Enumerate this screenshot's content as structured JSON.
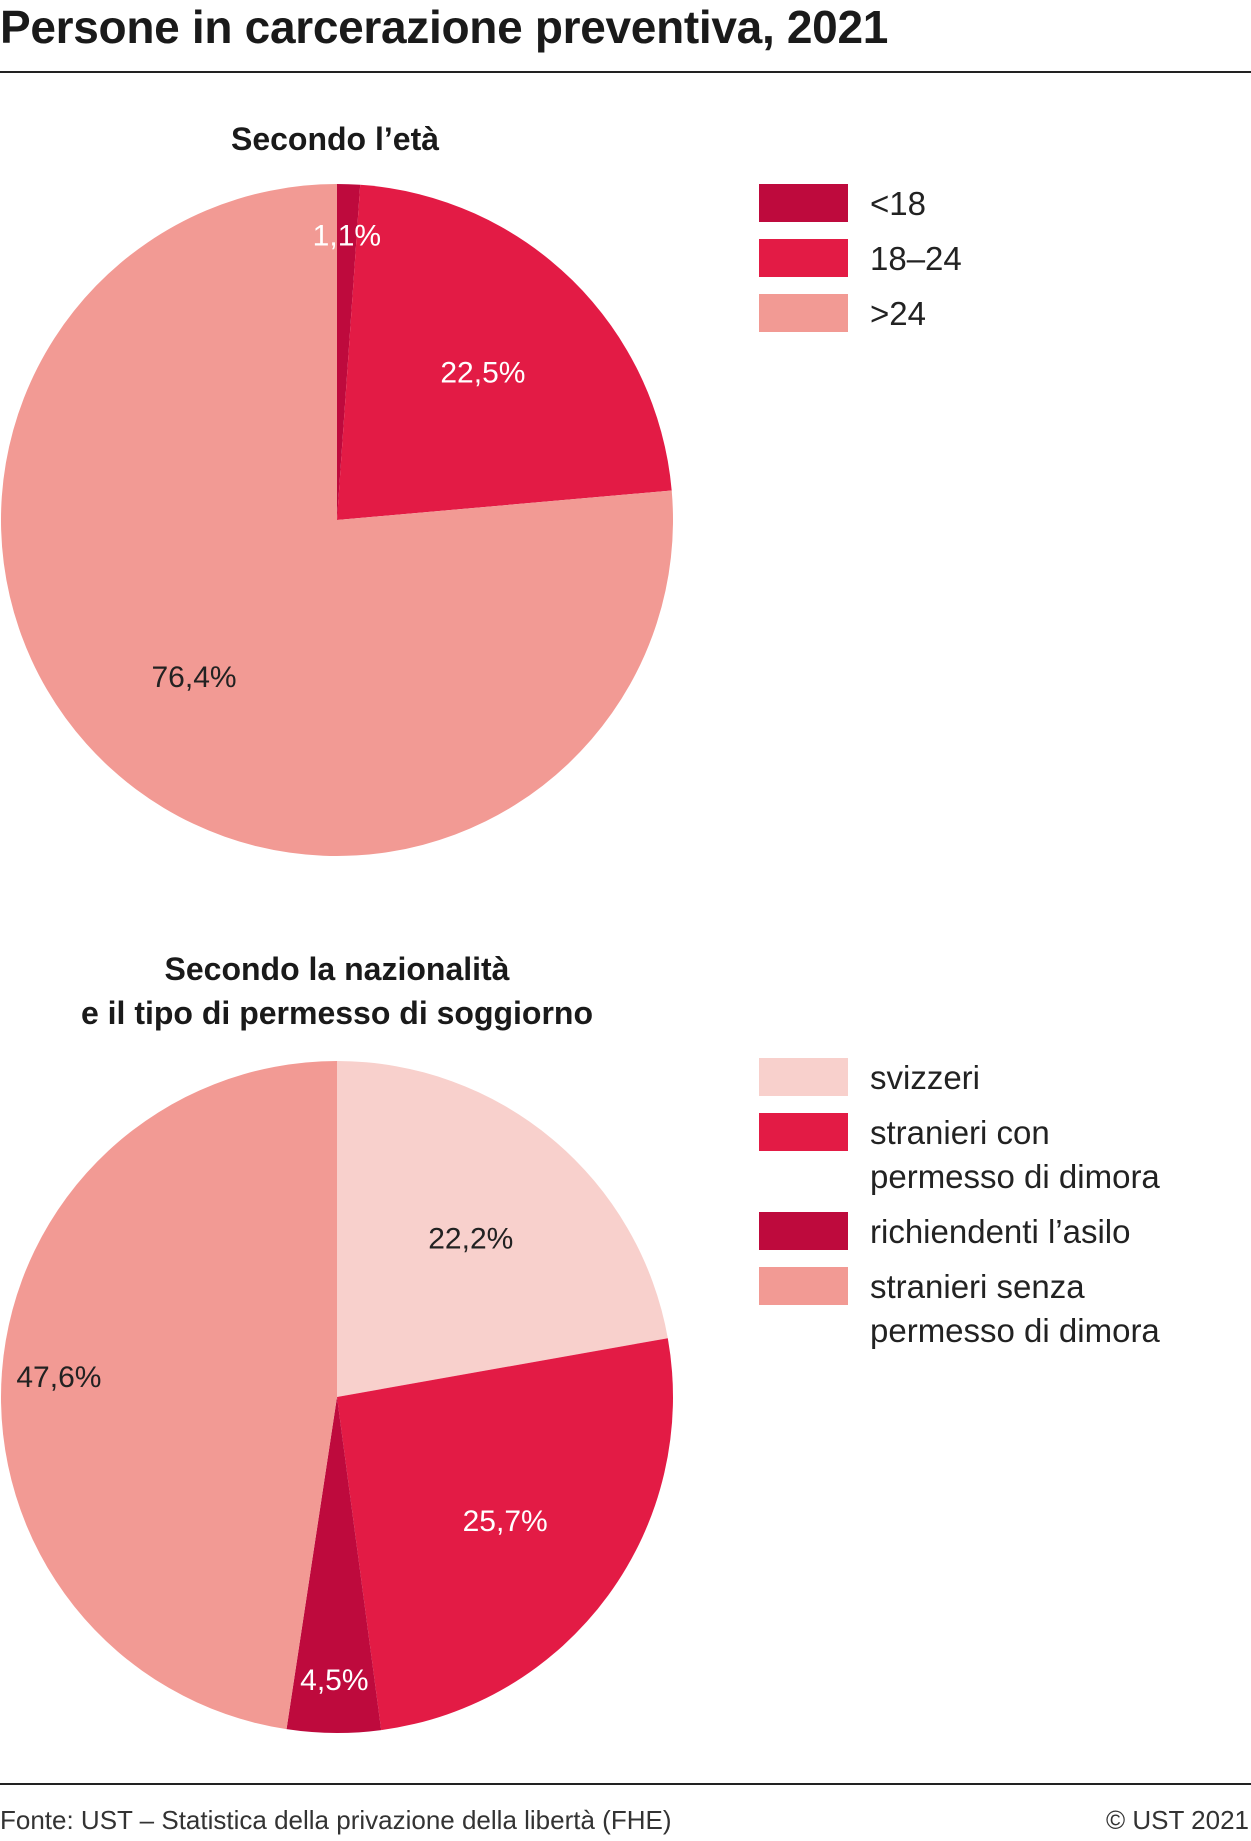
{
  "title": "Persone in carcerazione preventiva, 2021",
  "footer": {
    "source": "Fonte: UST – Statistica della privazione della libertà (FHE)",
    "copyright": "© UST 2021"
  },
  "chart_data": [
    {
      "type": "pie",
      "title": [
        "Secondo l’età"
      ],
      "slices": [
        {
          "label": "<18",
          "value": 1.1,
          "value_label": "1,1%",
          "color": "#BE0A3D",
          "label_color": "#ffffff"
        },
        {
          "label": "18–24",
          "value": 22.5,
          "value_label": "22,5%",
          "color": "#E31B45",
          "label_color": "#ffffff"
        },
        {
          "label": ">24",
          "value": 76.4,
          "value_label": "76,4%",
          "color": "#F29A94",
          "label_color": "#222222"
        }
      ],
      "legend": [
        {
          "lines": [
            "<18"
          ],
          "color": "#BE0A3D"
        },
        {
          "lines": [
            "18–24"
          ],
          "color": "#E31B45"
        },
        {
          "lines": [
            ">24"
          ],
          "color": "#F29A94"
        }
      ]
    },
    {
      "type": "pie",
      "title": [
        "Secondo la nazionalità",
        "e il tipo di permesso di soggiorno"
      ],
      "slices": [
        {
          "label": "svizzeri",
          "value": 22.2,
          "value_label": "22,2%",
          "color": "#F8D0CC",
          "label_color": "#222222"
        },
        {
          "label": "stranieri con permesso di dimora",
          "value": 25.7,
          "value_label": "25,7%",
          "color": "#E31B45",
          "label_color": "#ffffff"
        },
        {
          "label": "richiendenti l’asilo",
          "value": 4.5,
          "value_label": "4,5%",
          "color": "#BE0A3D",
          "label_color": "#ffffff"
        },
        {
          "label": "stranieri senza permesso di dimora",
          "value": 47.6,
          "value_label": "47,6%",
          "color": "#F29A94",
          "label_color": "#222222"
        }
      ],
      "legend": [
        {
          "lines": [
            "svizzeri"
          ],
          "color": "#F8D0CC"
        },
        {
          "lines": [
            "stranieri con",
            "permesso di dimora"
          ],
          "color": "#E31B45"
        },
        {
          "lines": [
            "richiendenti l’asilo"
          ],
          "color": "#BE0A3D"
        },
        {
          "lines": [
            "stranieri senza",
            "permesso di dimora"
          ],
          "color": "#F29A94"
        }
      ]
    }
  ]
}
